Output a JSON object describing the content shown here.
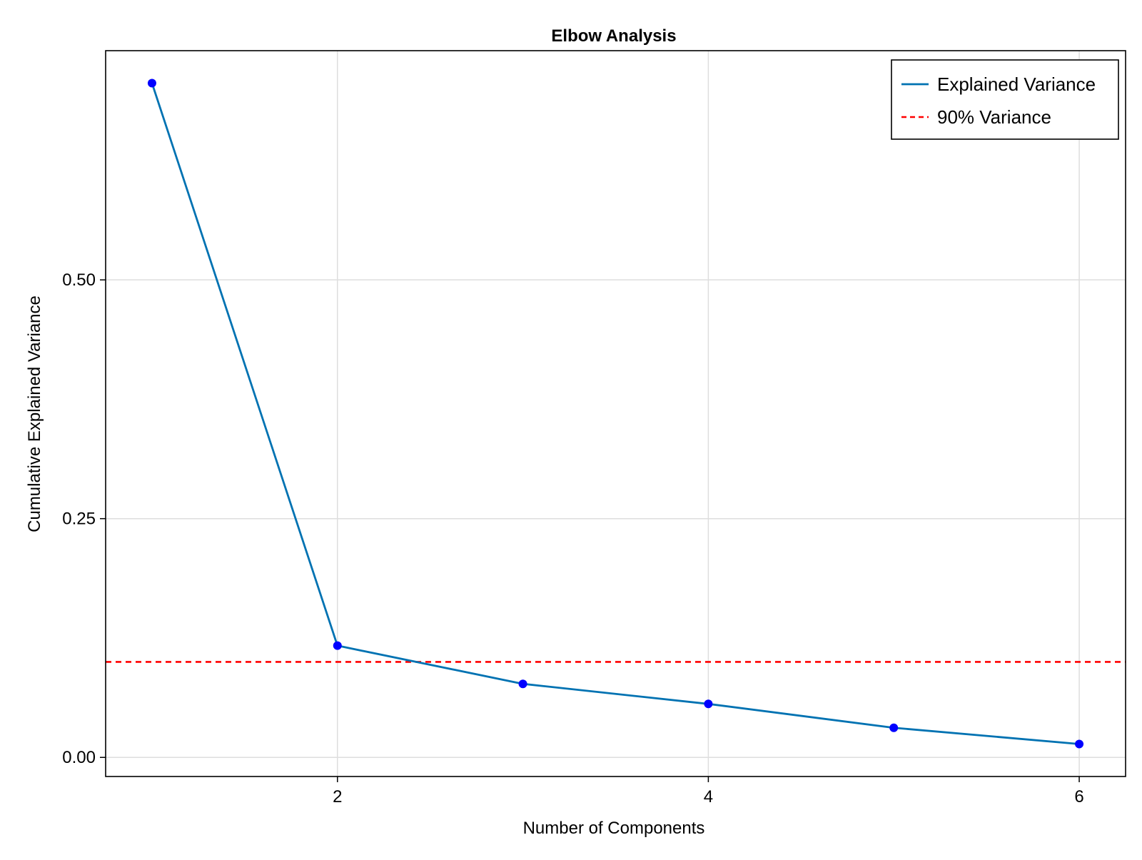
{
  "chart_data": {
    "type": "line",
    "title": "Elbow Analysis",
    "xlabel": "Number of Components",
    "ylabel": "Cumulative Explained Variance",
    "xlim": [
      0.75,
      6.25
    ],
    "ylim": [
      -0.02,
      0.74
    ],
    "xticks": [
      2,
      4,
      6
    ],
    "xtick_labels": [
      "2",
      "4",
      "6"
    ],
    "yticks": [
      0.0,
      0.25,
      0.5
    ],
    "ytick_labels": [
      "0.00",
      "0.25",
      "0.50"
    ],
    "grid": true,
    "legend_position": "top-right",
    "series": [
      {
        "name": "Explained Variance",
        "color": "#0072b2",
        "marker_color": "#0000ff",
        "x": [
          1,
          2,
          3,
          4,
          5,
          6
        ],
        "y": [
          0.706,
          0.117,
          0.077,
          0.056,
          0.031,
          0.014
        ]
      }
    ],
    "reference_lines": [
      {
        "name": "90% Variance",
        "orientation": "horizontal",
        "y": 0.1,
        "color": "#ff0000",
        "style": "dashed"
      }
    ]
  }
}
